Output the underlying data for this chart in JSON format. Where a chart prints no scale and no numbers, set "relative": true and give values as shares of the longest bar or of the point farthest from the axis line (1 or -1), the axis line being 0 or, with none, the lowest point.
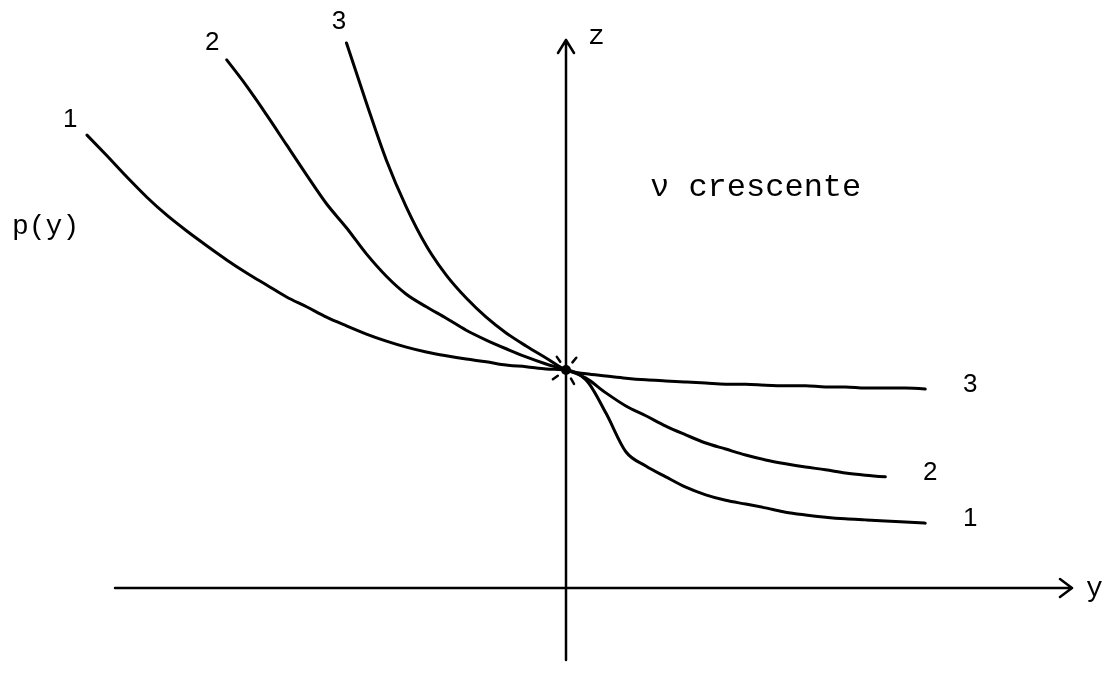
{
  "chart_data": {
    "type": "line",
    "relative": true,
    "xlabel": "y",
    "ylabel": "z",
    "annotations": [
      "p(y)",
      "ν crescente"
    ],
    "categories": [
      null,
      null,
      null,
      null,
      null,
      null,
      null,
      null,
      null,
      null,
      null,
      null,
      null,
      null,
      null,
      null,
      null,
      null,
      null,
      null,
      null,
      null,
      null,
      null,
      null,
      null,
      null,
      null,
      null,
      null,
      null,
      null,
      null,
      null,
      null,
      null,
      null,
      null,
      null,
      null,
      null,
      null,
      null,
      null,
      null,
      null,
      null,
      null,
      null
    ],
    "series": [
      {
        "name": "1",
        "color": "#000000",
        "values": [
          0.831,
          0.793,
          0.754,
          0.717,
          0.684,
          0.655,
          0.628,
          0.602,
          0.578,
          0.556,
          0.534,
          0.516,
          0.497,
          0.481,
          0.466,
          0.453,
          0.442,
          0.433,
          0.426,
          0.42,
          0.415,
          0.409,
          0.406,
          0.402,
          0.4,
          0.382,
          0.321,
          0.25,
          0.224,
          0.204,
          0.185,
          0.171,
          0.161,
          0.154,
          0.147,
          0.139,
          0.134,
          0.13,
          0.127,
          0.125,
          0.123,
          0.121,
          0.119,
          null,
          null,
          null,
          null,
          null,
          null
        ]
      },
      {
        "name": "2",
        "color": "#000000",
        "values": [
          null,
          null,
          null,
          null,
          null,
          null,
          null,
          0.969,
          0.921,
          0.868,
          0.813,
          0.758,
          0.705,
          0.661,
          0.613,
          0.572,
          0.539,
          0.516,
          0.495,
          0.473,
          0.455,
          0.439,
          0.424,
          0.411,
          0.4,
          0.385,
          0.358,
          0.334,
          0.316,
          0.297,
          0.281,
          0.266,
          0.255,
          0.244,
          0.235,
          0.228,
          0.222,
          0.217,
          0.211,
          0.207,
          0.204,
          null,
          null,
          null,
          null,
          null,
          null,
          null,
          null
        ]
      },
      {
        "name": "3",
        "color": "#000000",
        "values": [
          null,
          null,
          null,
          null,
          null,
          null,
          null,
          null,
          null,
          null,
          null,
          null,
          null,
          1.0,
          0.89,
          0.785,
          0.699,
          0.628,
          0.574,
          0.532,
          0.497,
          0.468,
          0.444,
          0.422,
          0.4,
          0.393,
          0.389,
          0.385,
          0.382,
          0.38,
          0.378,
          0.376,
          0.374,
          0.374,
          0.372,
          0.371,
          0.371,
          0.369,
          0.369,
          0.367,
          0.367,
          0.367,
          0.365,
          null,
          null,
          null,
          null,
          null,
          null
        ]
      }
    ]
  }
}
